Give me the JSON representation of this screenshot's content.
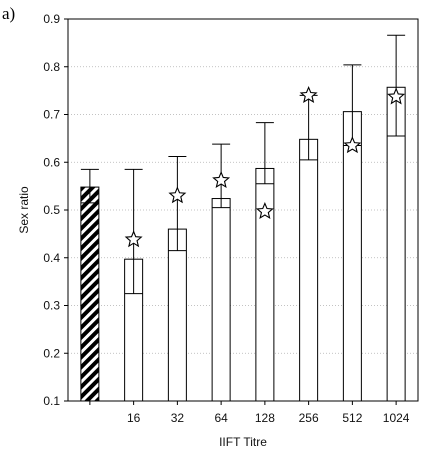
{
  "panel_label": "a)",
  "chart_data": {
    "type": "bar",
    "title": "",
    "xlabel": "IIFT Titre",
    "ylabel": "Sex ratio",
    "ylim": [
      0.1,
      0.9
    ],
    "yticks": [
      0.1,
      0.2,
      0.3,
      0.4,
      0.5,
      0.6,
      0.7,
      0.8,
      0.9
    ],
    "grid": "horizontal dotted",
    "categories": [
      "",
      "16",
      "32",
      "64",
      "128",
      "256",
      "512",
      "1024"
    ],
    "values": [
      0.548,
      0.397,
      0.46,
      0.524,
      0.587,
      0.648,
      0.706,
      0.757
    ],
    "error_upper": [
      0.585,
      0.585,
      0.612,
      0.638,
      0.683,
      0.74,
      0.804,
      0.866
    ],
    "error_lower": [
      0.515,
      0.325,
      0.415,
      0.505,
      0.555,
      0.605,
      0.635,
      0.655
    ],
    "star_markers": [
      null,
      0.438,
      0.53,
      0.562,
      0.497,
      0.74,
      0.635,
      0.737
    ],
    "bar_styles": [
      "hatched",
      "plain",
      "plain",
      "plain",
      "plain",
      "plain",
      "plain",
      "plain"
    ],
    "colors": {
      "bar_fill": "#ffffff",
      "stroke": "#000000",
      "grid": "#b0b0b0"
    }
  }
}
